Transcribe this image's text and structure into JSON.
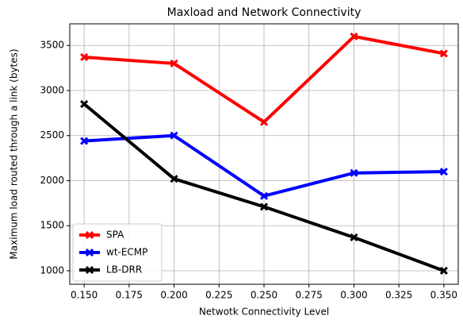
{
  "chart_data": {
    "type": "line",
    "title": "Maxload and Network Connectivity",
    "xlabel": "Netwotk Connectivity Level",
    "ylabel": "Maximum load routed through a link (bytes)",
    "x": [
      0.15,
      0.2,
      0.25,
      0.3,
      0.35
    ],
    "series": [
      {
        "name": "SPA",
        "color": "#ff0000",
        "values": [
          3370,
          3300,
          2650,
          3600,
          3410
        ]
      },
      {
        "name": "wt-ECMP",
        "color": "#0000ff",
        "values": [
          2440,
          2500,
          1830,
          2085,
          2100
        ]
      },
      {
        "name": "LB-DRR",
        "color": "#000000",
        "values": [
          2850,
          2020,
          1710,
          1370,
          1000
        ]
      }
    ],
    "xlim": [
      0.142,
      0.358
    ],
    "ylim": [
      850,
      3740
    ],
    "xticks": [
      {
        "value": 0.15,
        "label": "0.150"
      },
      {
        "value": 0.175,
        "label": "0.175"
      },
      {
        "value": 0.2,
        "label": "0.200"
      },
      {
        "value": 0.225,
        "label": "0.225"
      },
      {
        "value": 0.25,
        "label": "0.250"
      },
      {
        "value": 0.275,
        "label": "0.275"
      },
      {
        "value": 0.3,
        "label": "0.300"
      },
      {
        "value": 0.325,
        "label": "0.325"
      },
      {
        "value": 0.35,
        "label": "0.350"
      }
    ],
    "yticks": [
      1000,
      1500,
      2000,
      2500,
      3000,
      3500
    ],
    "grid": true,
    "legend": "lower left"
  }
}
